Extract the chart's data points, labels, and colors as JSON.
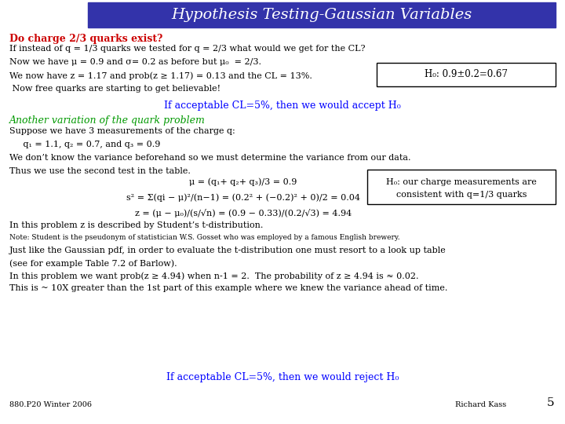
{
  "title": "Hypothesis Testing-Gaussian Variables",
  "title_bg": "#3333aa",
  "title_color": "#ffffff",
  "bg_color": "#ffffff",
  "section1_heading": "Do charge 2/3 quarks exist?",
  "section1_heading_color": "#cc0000",
  "s1_line1": "If instead of q = 1/3 quarks we tested for q = 2/3 what would we get for the CL?",
  "s1_line2": "Now we have μ = 0.9 and σ= 0.2 as before but μ₀  = 2/3.",
  "s1_line3": "We now have z = 1.17 and prob(z ≥ 1.17) = 0.13 and the CL = 13%.",
  "s1_line4": " Now free quarks are starting to get believable!",
  "box1_text": "H₀: 0.9±0.2=0.67",
  "if_accept1": "If acceptable CL=5%, then we would accept H₀",
  "section2_heading": "Another variation of the quark problem",
  "section2_heading_color": "#009900",
  "s2_line1": "Suppose we have 3 measurements of the charge q:",
  "s2_line2": "     q₁ = 1.1, q₂ = 0.7, and q₃ = 0.9",
  "s2_line3": "We don’t know the variance beforehand so we must determine the variance from our data.",
  "s2_line4": "Thus we use the second test in the table.",
  "formula_line1": "μ = (q₁+ q₂+ q₃)/3 = 0.9",
  "formula_line2": "s² = Σ(qi − μ)²/(n−1) = (0.2² + (−0.2)² + 0)/2 = 0.04",
  "formula_line3": "z = (μ − μ₀)/(s/√n) = (0.9 − 0.33)/(0.2/√3) = 4.94",
  "box2_line1": "H₀: our charge measurements are",
  "box2_line2": "consistent with q=1/3 quarks",
  "s3_line1": "In this problem z is described by Student’s t-distribution.",
  "s3_line2": "Note: Student is the pseudonym of statistician W.S. Gosset who was employed by a famous English brewery.",
  "s3_line3": "Just like the Gaussian pdf, in order to evaluate the t-distribution one must resort to a look up table",
  "s3_line4": "(see for example Table 7.2 of Barlow).",
  "s3_line5": "In this problem we want prob(z ≥ 4.94) when n-1 = 2.  The probability of z ≥ 4.94 is ≈ 0.02.",
  "s3_line6": "This is ~ 10X greater than the 1st part of this example where we knew the variance ahead of time.",
  "if_reject": "If acceptable CL=5%, then we would reject H₀",
  "footer_left": "880.P20 Winter 2006",
  "footer_right": "Richard Kass",
  "footer_page": "5"
}
